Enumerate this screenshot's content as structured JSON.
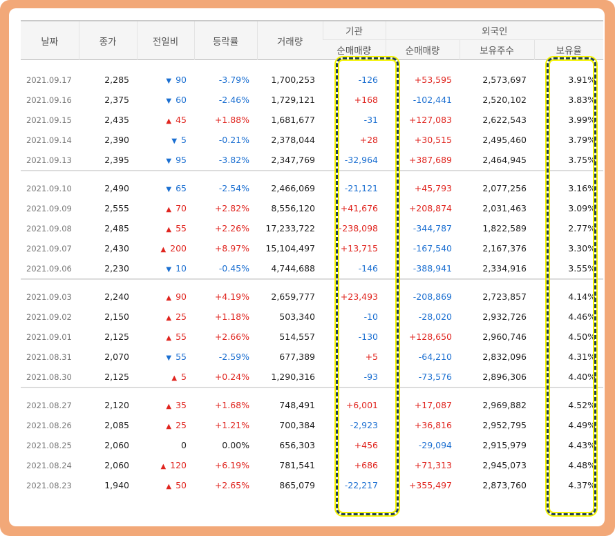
{
  "header": {
    "date": "날짜",
    "close": "종가",
    "change": "전일비",
    "rate": "등락률",
    "volume": "거래량",
    "inst_group": "기관",
    "inst_net": "순매매량",
    "foreign_group": "외국인",
    "foreign_net": "순매매량",
    "foreign_shares": "보유주수",
    "foreign_ratio": "보유율"
  },
  "groups": [
    {
      "rows": [
        {
          "date": "2021.09.17",
          "close": "2,285",
          "dir": "down",
          "change": "90",
          "rate": "-3.79%",
          "volume": "1,700,253",
          "inst": "-126",
          "foreign": "+53,595",
          "shares": "2,573,697",
          "ratio": "3.91%"
        },
        {
          "date": "2021.09.16",
          "close": "2,375",
          "dir": "down",
          "change": "60",
          "rate": "-2.46%",
          "volume": "1,729,121",
          "inst": "+168",
          "foreign": "-102,441",
          "shares": "2,520,102",
          "ratio": "3.83%"
        },
        {
          "date": "2021.09.15",
          "close": "2,435",
          "dir": "up",
          "change": "45",
          "rate": "+1.88%",
          "volume": "1,681,677",
          "inst": "-31",
          "foreign": "+127,083",
          "shares": "2,622,543",
          "ratio": "3.99%"
        },
        {
          "date": "2021.09.14",
          "close": "2,390",
          "dir": "down",
          "change": "5",
          "rate": "-0.21%",
          "volume": "2,378,044",
          "inst": "+28",
          "foreign": "+30,515",
          "shares": "2,495,460",
          "ratio": "3.79%"
        },
        {
          "date": "2021.09.13",
          "close": "2,395",
          "dir": "down",
          "change": "95",
          "rate": "-3.82%",
          "volume": "2,347,769",
          "inst": "-32,964",
          "foreign": "+387,689",
          "shares": "2,464,945",
          "ratio": "3.75%"
        }
      ]
    },
    {
      "rows": [
        {
          "date": "2021.09.10",
          "close": "2,490",
          "dir": "down",
          "change": "65",
          "rate": "-2.54%",
          "volume": "2,466,069",
          "inst": "-21,121",
          "foreign": "+45,793",
          "shares": "2,077,256",
          "ratio": "3.16%"
        },
        {
          "date": "2021.09.09",
          "close": "2,555",
          "dir": "up",
          "change": "70",
          "rate": "+2.82%",
          "volume": "8,556,120",
          "inst": "+41,676",
          "foreign": "+208,874",
          "shares": "2,031,463",
          "ratio": "3.09%"
        },
        {
          "date": "2021.09.08",
          "close": "2,485",
          "dir": "up",
          "change": "55",
          "rate": "+2.26%",
          "volume": "17,233,722",
          "inst": "+238,098",
          "foreign": "-344,787",
          "shares": "1,822,589",
          "ratio": "2.77%"
        },
        {
          "date": "2021.09.07",
          "close": "2,430",
          "dir": "up",
          "change": "200",
          "rate": "+8.97%",
          "volume": "15,104,497",
          "inst": "+13,715",
          "foreign": "-167,540",
          "shares": "2,167,376",
          "ratio": "3.30%"
        },
        {
          "date": "2021.09.06",
          "close": "2,230",
          "dir": "down",
          "change": "10",
          "rate": "-0.45%",
          "volume": "4,744,688",
          "inst": "-146",
          "foreign": "-388,941",
          "shares": "2,334,916",
          "ratio": "3.55%"
        }
      ]
    },
    {
      "rows": [
        {
          "date": "2021.09.03",
          "close": "2,240",
          "dir": "up",
          "change": "90",
          "rate": "+4.19%",
          "volume": "2,659,777",
          "inst": "+23,493",
          "foreign": "-208,869",
          "shares": "2,723,857",
          "ratio": "4.14%"
        },
        {
          "date": "2021.09.02",
          "close": "2,150",
          "dir": "up",
          "change": "25",
          "rate": "+1.18%",
          "volume": "503,340",
          "inst": "-10",
          "foreign": "-28,020",
          "shares": "2,932,726",
          "ratio": "4.46%"
        },
        {
          "date": "2021.09.01",
          "close": "2,125",
          "dir": "up",
          "change": "55",
          "rate": "+2.66%",
          "volume": "514,557",
          "inst": "-130",
          "foreign": "+128,650",
          "shares": "2,960,746",
          "ratio": "4.50%"
        },
        {
          "date": "2021.08.31",
          "close": "2,070",
          "dir": "down",
          "change": "55",
          "rate": "-2.59%",
          "volume": "677,389",
          "inst": "+5",
          "foreign": "-64,210",
          "shares": "2,832,096",
          "ratio": "4.31%"
        },
        {
          "date": "2021.08.30",
          "close": "2,125",
          "dir": "up",
          "change": "5",
          "rate": "+0.24%",
          "volume": "1,290,316",
          "inst": "-93",
          "foreign": "-73,576",
          "shares": "2,896,306",
          "ratio": "4.40%"
        }
      ]
    },
    {
      "rows": [
        {
          "date": "2021.08.27",
          "close": "2,120",
          "dir": "up",
          "change": "35",
          "rate": "+1.68%",
          "volume": "748,491",
          "inst": "+6,001",
          "foreign": "+17,087",
          "shares": "2,969,882",
          "ratio": "4.52%"
        },
        {
          "date": "2021.08.26",
          "close": "2,085",
          "dir": "up",
          "change": "25",
          "rate": "+1.21%",
          "volume": "700,384",
          "inst": "-2,923",
          "foreign": "+36,816",
          "shares": "2,952,795",
          "ratio": "4.49%"
        },
        {
          "date": "2021.08.25",
          "close": "2,060",
          "dir": "flat",
          "change": "0",
          "rate": "0.00%",
          "volume": "656,303",
          "inst": "+456",
          "foreign": "-29,094",
          "shares": "2,915,979",
          "ratio": "4.43%"
        },
        {
          "date": "2021.08.24",
          "close": "2,060",
          "dir": "up",
          "change": "120",
          "rate": "+6.19%",
          "volume": "781,541",
          "inst": "+686",
          "foreign": "+71,313",
          "shares": "2,945,073",
          "ratio": "4.48%"
        },
        {
          "date": "2021.08.23",
          "close": "1,940",
          "dir": "up",
          "change": "50",
          "rate": "+2.65%",
          "volume": "865,079",
          "inst": "-22,217",
          "foreign": "+355,497",
          "shares": "2,873,760",
          "ratio": "4.37%"
        }
      ]
    }
  ],
  "colors": {
    "up": "#e0251f",
    "down": "#1b6fd1",
    "frame": "#f2a878",
    "highlight": "#f4f300"
  }
}
